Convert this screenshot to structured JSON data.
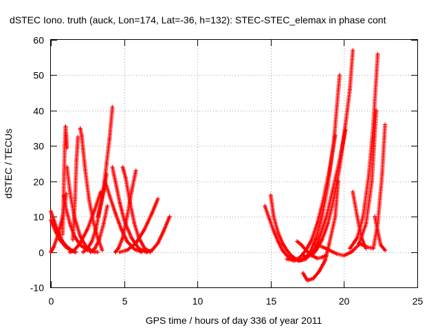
{
  "chart_data": {
    "type": "scatter",
    "title": "dSTEC Iono. truth (auck, Lon=174, Lat=-36, h=132): STEC-STEC_elemax in phase cont",
    "xlabel": "GPS time / hours of day 336 of year 2011",
    "ylabel": "dSTEC  / TECUs",
    "xlim": [
      0,
      25
    ],
    "ylim": [
      -10,
      60
    ],
    "xticks": [
      0,
      5,
      10,
      15,
      20,
      25
    ],
    "yticks": [
      -10,
      0,
      10,
      20,
      30,
      40,
      50,
      60
    ],
    "grid": true,
    "marker": "+",
    "color": "#ff0000",
    "series": [
      {
        "x": [
          0.0,
          0.2,
          0.5,
          0.8,
          1.05
        ],
        "y": [
          0.0,
          1.5,
          5.0,
          10.0,
          16.5
        ]
      },
      {
        "x": [
          0.0,
          0.25,
          0.5,
          0.8,
          1.1,
          1.4,
          1.7
        ],
        "y": [
          11.5,
          8.5,
          5.5,
          3.0,
          1.5,
          0.5,
          0.0
        ]
      },
      {
        "x": [
          0.0,
          0.3,
          0.6,
          1.0,
          1.4,
          1.7
        ],
        "y": [
          9.0,
          6.0,
          3.5,
          1.5,
          0.3,
          0.0
        ]
      },
      {
        "x": [
          0.8,
          0.85,
          0.9,
          0.95,
          1.0,
          1.05,
          1.1
        ],
        "y": [
          5.0,
          12.0,
          22.0,
          30.0,
          35.5,
          33.0,
          29.5
        ]
      },
      {
        "x": [
          1.1,
          1.3,
          1.6,
          2.0,
          2.4,
          2.8,
          3.2
        ],
        "y": [
          24.0,
          17.0,
          10.0,
          4.5,
          1.5,
          0.3,
          0.0
        ]
      },
      {
        "x": [
          0.9,
          1.05,
          1.3,
          1.6,
          2.0,
          2.5,
          3.0
        ],
        "y": [
          16.0,
          12.0,
          8.0,
          4.5,
          2.0,
          0.5,
          0.0
        ]
      },
      {
        "x": [
          1.5,
          1.65,
          1.75,
          1.85
        ],
        "y": [
          3.5,
          15.0,
          26.0,
          32.5
        ]
      },
      {
        "x": [
          2.0,
          2.1,
          2.2,
          2.35,
          2.6,
          2.9,
          3.2,
          3.5
        ],
        "y": [
          35.0,
          33.0,
          29.0,
          23.0,
          15.0,
          8.5,
          4.0,
          0.5
        ]
      },
      {
        "x": [
          1.3,
          1.6,
          2.0,
          2.5,
          3.0,
          3.4
        ],
        "y": [
          0.0,
          0.5,
          2.5,
          6.5,
          12.0,
          17.0
        ]
      },
      {
        "x": [
          2.2,
          2.5,
          2.8,
          3.1,
          3.3,
          3.6,
          3.8
        ],
        "y": [
          0.0,
          1.0,
          3.0,
          7.0,
          11.0,
          17.0,
          22.0
        ]
      },
      {
        "x": [
          3.2,
          3.4,
          3.6,
          3.8,
          4.0,
          4.2
        ],
        "y": [
          10.0,
          13.5,
          18.0,
          25.0,
          32.0,
          41.0
        ]
      },
      {
        "x": [
          2.7,
          3.0,
          3.3,
          3.6,
          3.85
        ],
        "y": [
          0.0,
          1.0,
          3.5,
          8.0,
          13.0
        ]
      },
      {
        "x": [
          3.7,
          4.0,
          4.4,
          4.8,
          5.2,
          5.7,
          6.2
        ],
        "y": [
          20.0,
          16.0,
          11.0,
          6.5,
          3.0,
          0.8,
          0.0
        ]
      },
      {
        "x": [
          4.2,
          4.4,
          4.7,
          5.0,
          5.5,
          6.0,
          6.5
        ],
        "y": [
          24.0,
          20.0,
          14.0,
          9.0,
          4.0,
          1.0,
          0.0
        ]
      },
      {
        "x": [
          4.4,
          4.6,
          4.9,
          5.2,
          5.5,
          5.8
        ],
        "y": [
          0.0,
          1.0,
          4.0,
          10.0,
          17.0,
          23.0
        ]
      },
      {
        "x": [
          4.9,
          5.1,
          5.4,
          5.7,
          6.0,
          6.4,
          6.8
        ],
        "y": [
          24.0,
          21.0,
          14.0,
          8.0,
          4.0,
          1.0,
          0.0
        ]
      },
      {
        "x": [
          4.7,
          5.2,
          5.8,
          6.4,
          6.9,
          7.3
        ],
        "y": [
          0.0,
          0.5,
          2.5,
          6.5,
          11.0,
          15.0
        ]
      },
      {
        "x": [
          6.5,
          6.9,
          7.3,
          7.7,
          8.1
        ],
        "y": [
          0.0,
          0.5,
          2.5,
          6.0,
          10.0
        ]
      },
      {
        "x": [
          14.6,
          14.9,
          15.2,
          15.5,
          15.8,
          16.1,
          16.4,
          16.7
        ],
        "y": [
          13.0,
          9.5,
          6.0,
          3.0,
          0.5,
          -1.0,
          -2.0,
          -2.3
        ]
      },
      {
        "x": [
          15.0,
          15.2,
          15.5,
          15.8,
          16.1,
          16.4,
          16.7,
          17.0,
          17.4
        ],
        "y": [
          16.0,
          10.0,
          5.5,
          2.5,
          0.5,
          -1.0,
          -2.0,
          -2.4,
          -2.0
        ]
      },
      {
        "x": [
          16.1,
          16.6,
          17.0,
          17.4,
          17.8,
          18.2,
          18.6,
          19.0,
          19.4
        ],
        "y": [
          -2.0,
          -2.5,
          -1.5,
          0.5,
          3.5,
          8.5,
          15.0,
          23.0,
          33.0
        ]
      },
      {
        "x": [
          16.5,
          16.9,
          17.3,
          17.7,
          18.1,
          18.5,
          18.9,
          19.3,
          19.7
        ],
        "y": [
          -1.5,
          -2.5,
          -2.0,
          0.0,
          4.0,
          10.0,
          19.0,
          31.0,
          50.0
        ]
      },
      {
        "x": [
          17.2,
          17.5,
          17.8,
          18.1,
          18.4,
          18.8,
          19.2,
          19.7,
          20.1
        ],
        "y": [
          -1.0,
          -1.5,
          -0.5,
          1.5,
          5.0,
          10.0,
          17.0,
          26.0,
          34.5
        ]
      },
      {
        "x": [
          17.8,
          18.1,
          18.5,
          18.9,
          19.3,
          19.7,
          20.1,
          20.4,
          20.6
        ],
        "y": [
          -1.0,
          0.5,
          3.5,
          8.0,
          15.0,
          24.0,
          36.0,
          46.0,
          57.0
        ]
      },
      {
        "x": [
          16.8,
          17.1,
          17.4,
          17.8,
          18.2,
          18.5,
          18.8
        ],
        "y": [
          3.0,
          2.0,
          0.5,
          -1.0,
          -1.8,
          -1.5,
          -1.0
        ]
      },
      {
        "x": [
          17.2,
          17.5,
          17.9,
          18.3,
          18.7,
          19.0,
          19.4,
          19.6
        ],
        "y": [
          -6.0,
          -8.0,
          -7.5,
          -5.5,
          -2.5,
          2.5,
          10.0,
          20.0
        ]
      },
      {
        "x": [
          18.0,
          18.5,
          19.0,
          19.5,
          20.0,
          20.5,
          21.0,
          21.5,
          21.9,
          22.2
        ],
        "y": [
          2.0,
          1.5,
          0.5,
          -0.5,
          -1.0,
          0.0,
          2.0,
          8.0,
          20.0,
          40.0
        ]
      },
      {
        "x": [
          20.4,
          20.9,
          21.3,
          21.7,
          22.0,
          22.3
        ],
        "y": [
          1.0,
          4.0,
          10.0,
          22.0,
          36.0,
          56.0
        ]
      },
      {
        "x": [
          22.1,
          22.3,
          22.5,
          22.8
        ],
        "y": [
          10.0,
          6.0,
          2.0,
          0.5
        ]
      },
      {
        "x": [
          21.0,
          21.5,
          22.0,
          22.3,
          22.6,
          22.8
        ],
        "y": [
          2.5,
          1.5,
          1.0,
          8.0,
          22.0,
          36.0
        ]
      },
      {
        "x": [
          20.6,
          20.9,
          21.2,
          21.5
        ],
        "y": [
          17.0,
          10.0,
          4.0,
          1.0
        ]
      }
    ]
  }
}
